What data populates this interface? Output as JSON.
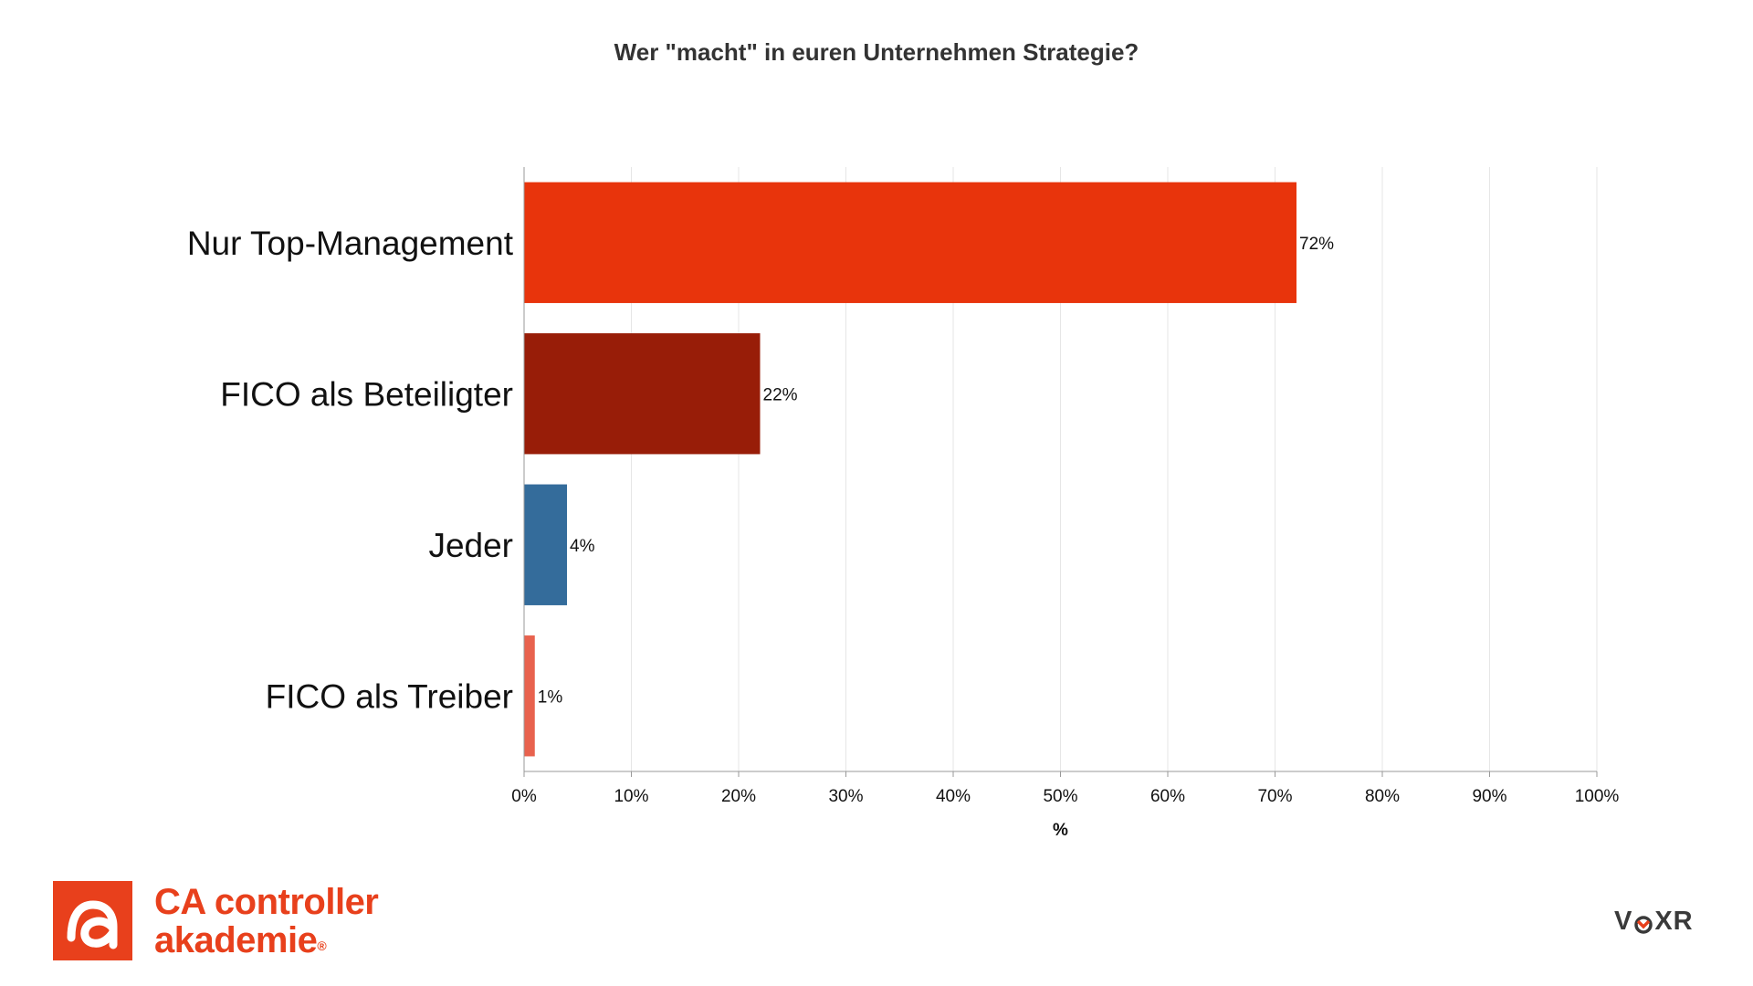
{
  "chart_data": {
    "type": "bar",
    "orientation": "horizontal",
    "title": "Wer \"macht\" in euren Unternehmen Strategie?",
    "categories": [
      "Nur Top-Management",
      "FICO als Beteiligter",
      "Jeder",
      "FICO als Treiber"
    ],
    "values": [
      72,
      22,
      4,
      1
    ],
    "value_labels": [
      "72%",
      "22%",
      "4%",
      "1%"
    ],
    "colors": [
      "#e8340c",
      "#981d08",
      "#346c9b",
      "#e8624e"
    ],
    "xlabel": "%",
    "xlim": [
      0,
      100
    ],
    "xticks": [
      0,
      10,
      20,
      30,
      40,
      50,
      60,
      70,
      80,
      90,
      100
    ],
    "xtick_labels": [
      "0%",
      "10%",
      "20%",
      "30%",
      "40%",
      "50%",
      "60%",
      "70%",
      "80%",
      "90%",
      "100%"
    ],
    "grid": "vertical",
    "legend": "none"
  },
  "logos": {
    "left": {
      "name": "ca-controller-akademie-logo",
      "line1": "CA controller",
      "line2": "akademie",
      "registered": "®",
      "color": "#e8401c"
    },
    "right": {
      "name": "voxr-logo",
      "text_before": "V",
      "text_after": "XR",
      "color": "#3a3a3a",
      "accent": "#e8401c"
    }
  }
}
